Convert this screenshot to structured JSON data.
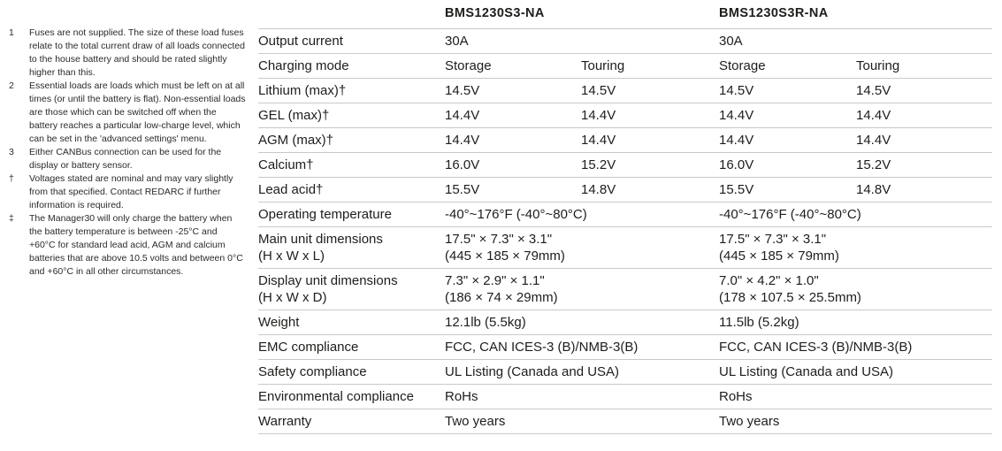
{
  "footnotes": [
    {
      "marker": "1",
      "text": "Fuses are not supplied. The size of these load fuses relate to the total current draw of all loads connected to the house battery and should be rated slightly higher than this."
    },
    {
      "marker": "2",
      "text": "Essential loads are loads which must be left on at all times (or until the battery is flat). Non-essential loads are those which can be switched off when the battery reaches a particular low-charge level, which can be set in the 'advanced settings' menu."
    },
    {
      "marker": "3",
      "text": "Either CANBus connection can be used for the display or battery sensor."
    },
    {
      "marker": "†",
      "text": "Voltages stated are nominal and may vary slightly from that specified. Contact REDARC if further information is required."
    },
    {
      "marker": "‡",
      "text": "The Manager30 will only charge the battery when the battery temperature is between -25°C and +60°C for standard lead acid, AGM and calcium batteries that are above 10.5 volts and between 0°C and +60°C in all other circumstances."
    }
  ],
  "table": {
    "products": [
      "BMS1230S3-NA",
      "BMS1230S3R-NA"
    ],
    "rows": [
      {
        "label": "Output current",
        "values": [
          "30A",
          "30A"
        ]
      },
      {
        "label": "Charging mode",
        "values": [
          "Storage",
          "Touring",
          "Storage",
          "Touring"
        ]
      },
      {
        "label": "Lithium (max)†",
        "values": [
          "14.5V",
          "14.5V",
          "14.5V",
          "14.5V"
        ]
      },
      {
        "label": "GEL (max)†",
        "values": [
          "14.4V",
          "14.4V",
          "14.4V",
          "14.4V"
        ]
      },
      {
        "label": "AGM (max)†",
        "values": [
          "14.4V",
          "14.4V",
          "14.4V",
          "14.4V"
        ]
      },
      {
        "label": "Calcium†",
        "values": [
          "16.0V",
          "15.2V",
          "16.0V",
          "15.2V"
        ]
      },
      {
        "label": "Lead acid†",
        "values": [
          "15.5V",
          "14.8V",
          "15.5V",
          "14.8V"
        ]
      },
      {
        "label": "Operating temperature",
        "values": [
          "-40°~176°F (-40°~80°C)",
          "-40°~176°F (-40°~80°C)"
        ]
      },
      {
        "label": "Main unit dimensions\n(H x W x L)",
        "values": [
          "17.5\" × 7.3\" × 3.1\"\n(445 × 185 × 79mm)",
          "17.5\" × 7.3\" × 3.1\"\n(445 × 185 × 79mm)"
        ]
      },
      {
        "label": "Display unit dimensions\n(H x W x D)",
        "values": [
          "7.3\" × 2.9\" × 1.1\"\n(186 × 74 × 29mm)",
          "7.0\" × 4.2\" × 1.0\"\n(178 × 107.5 × 25.5mm)"
        ]
      },
      {
        "label": "Weight",
        "values": [
          "12.1lb (5.5kg)",
          "11.5lb (5.2kg)"
        ]
      },
      {
        "label": "EMC compliance",
        "values": [
          "FCC, CAN ICES-3 (B)/NMB-3(B)",
          "FCC, CAN ICES-3 (B)/NMB-3(B)"
        ]
      },
      {
        "label": "Safety compliance",
        "values": [
          "UL Listing (Canada and USA)",
          "UL Listing (Canada and USA)"
        ]
      },
      {
        "label": "Environmental compliance",
        "values": [
          "RoHs",
          "RoHs"
        ]
      },
      {
        "label": "Warranty",
        "values": [
          "Two years",
          "Two years"
        ]
      }
    ]
  }
}
